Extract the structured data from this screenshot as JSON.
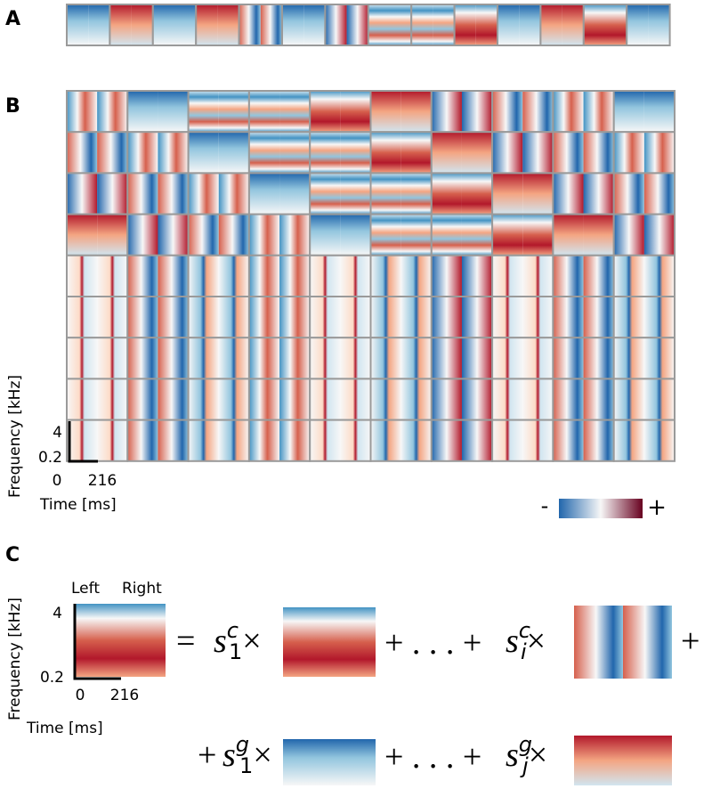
{
  "panels": {
    "a": {
      "label": "A"
    },
    "b": {
      "label": "B",
      "y_axis_label": "Frequency [kHz]",
      "y_ticks": [
        "4",
        "0.2"
      ],
      "x_ticks": [
        "0",
        "216"
      ],
      "x_axis_label": "Time [ms]",
      "colorbar": {
        "min_label": "-",
        "max_label": "+"
      }
    },
    "c": {
      "label": "C",
      "channel_labels": [
        "Left",
        "Right"
      ],
      "y_axis_label": "Frequency [kHz]",
      "y_ticks": [
        "4",
        "0.2"
      ],
      "x_ticks": [
        "0",
        "216"
      ],
      "x_axis_label": "Time [ms]",
      "equation": {
        "equals": "=",
        "term_1": {
          "symbol": "s",
          "sup": "c",
          "sub": "1",
          "times": "×"
        },
        "dots_1": "+ . . . +",
        "term_2": {
          "symbol": "s",
          "sup": "c",
          "sub": "i",
          "times": "×"
        },
        "plus_end": "+",
        "plus_start": "+",
        "term_3": {
          "symbol": "s",
          "sup": "g",
          "sub": "1",
          "times": "×"
        },
        "dots_2": "+ . . . +",
        "term_4": {
          "symbol": "s",
          "sup": "g",
          "sub": "j",
          "times": "×"
        }
      }
    }
  }
}
